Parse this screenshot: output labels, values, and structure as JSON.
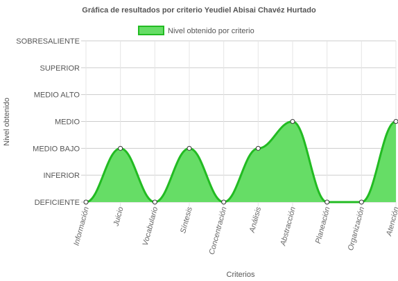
{
  "chart_data": {
    "type": "area",
    "title": "Gráfica de resultados por criterio Yeudiel Abisai Chavéz Hurtado",
    "xlabel": "Criterios",
    "ylabel": "Nivel obtenido",
    "y_levels": [
      "DEFICIENTE",
      "INFERIOR",
      "MEDIO BAJO",
      "MEDIO",
      "MEDIO ALTO",
      "SUPERIOR",
      "SOBRESALIENTE"
    ],
    "categories": [
      "Información",
      "Juicio",
      "Vocabulario",
      "Síntesis",
      "Concentración",
      "Análisis",
      "Abstracción",
      "Planeación",
      "Organización",
      "Atención"
    ],
    "series": [
      {
        "name": "Nivel obtenido por criterio",
        "values": [
          0,
          2,
          0,
          2,
          0,
          2,
          3,
          0,
          0,
          3
        ],
        "fill_color": "#66dd66",
        "line_color": "#22bb22"
      }
    ],
    "legend_position": "top",
    "grid": true
  }
}
